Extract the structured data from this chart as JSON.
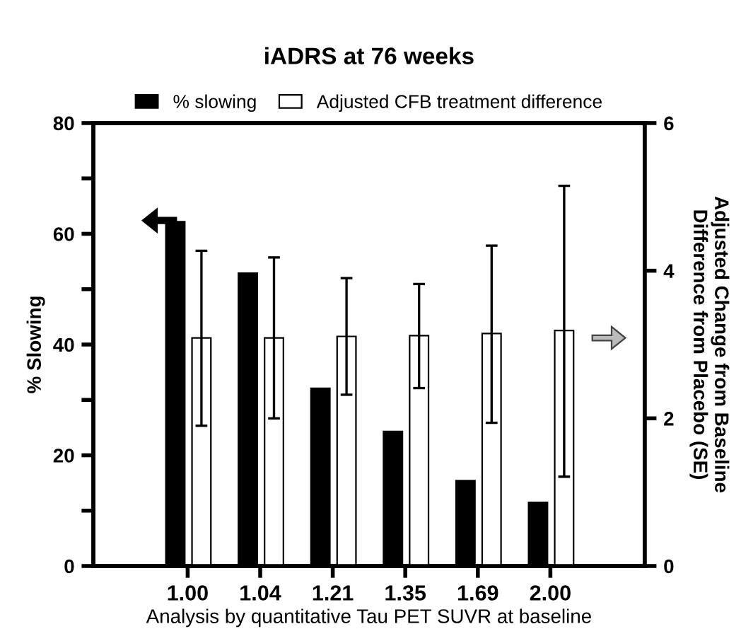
{
  "chart_data": {
    "type": "bar",
    "title": "iADRS at 76 weeks",
    "xlabel": "Analysis by quantitative Tau PET SUVR at baseline",
    "ylabel": "% Slowing",
    "y2label": "Adjusted Change from Baseline\nDifference from Placebo (SE)",
    "categories": [
      "1.00",
      "1.04",
      "1.21",
      "1.35",
      "1.69",
      "2.00"
    ],
    "series": [
      {
        "name": "% slowing",
        "color": "#000000",
        "values": [
          62.2,
          52.9,
          32.1,
          24.3,
          15.4,
          11.5
        ]
      },
      {
        "name": "Adjusted CFB treatment difference",
        "color": "#ffffff",
        "axis": "y2",
        "values": [
          3.09,
          3.09,
          3.11,
          3.12,
          3.15,
          3.19
        ],
        "errors": [
          [
            1.9,
            4.27
          ],
          [
            2.0,
            4.18
          ],
          [
            2.32,
            3.9
          ],
          [
            2.41,
            3.82
          ],
          [
            1.94,
            4.34
          ],
          [
            1.21,
            5.15
          ]
        ]
      }
    ],
    "ylim": [
      0,
      80
    ],
    "yticks": [
      0,
      {
        "value": 10,
        "label": null
      },
      20,
      {
        "value": 30,
        "label": null
      },
      40,
      {
        "value": 50,
        "label": null
      },
      60,
      {
        "value": 70,
        "label": null
      },
      80
    ],
    "y2lim": [
      0,
      6
    ],
    "y2ticks": [
      0,
      2,
      4,
      6
    ],
    "grid": false,
    "legend": "top"
  }
}
